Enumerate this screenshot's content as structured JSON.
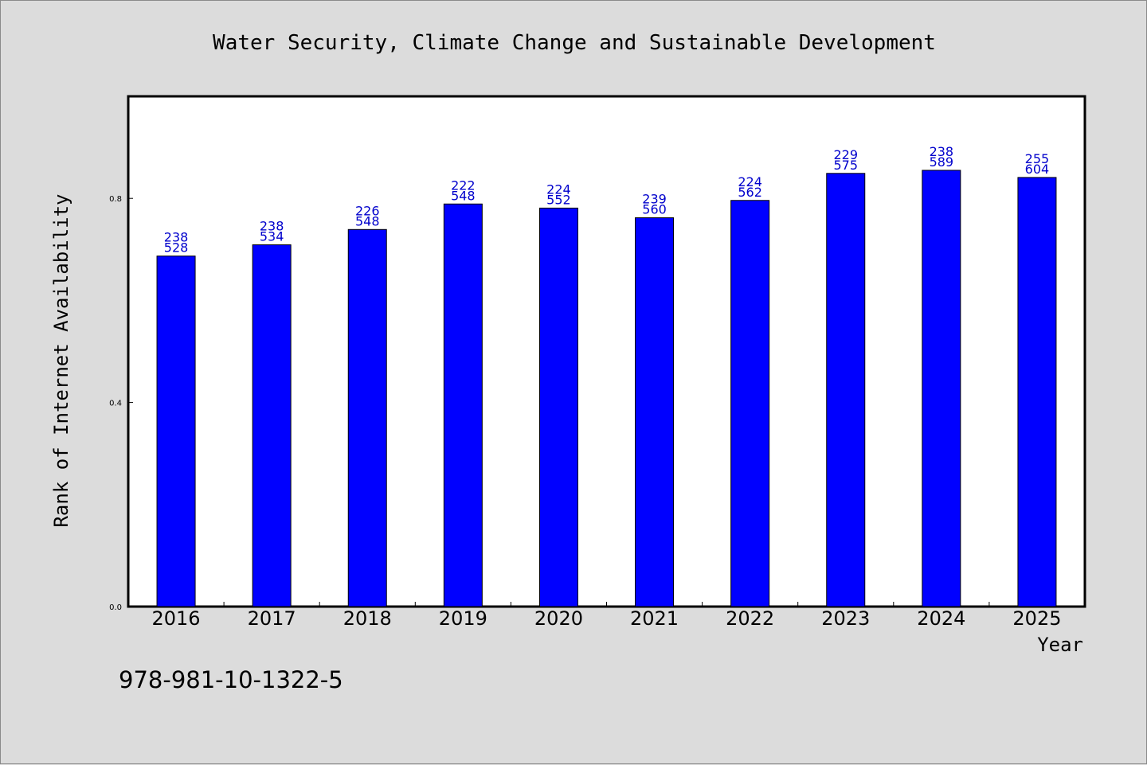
{
  "colors": {
    "bar": "#0000ff",
    "bar_stroke": "#000000",
    "label": "#0000cc",
    "plot_bg": "#ffffff",
    "page_bg": "#dcdcdc"
  },
  "footer": {
    "isbn": "978-981-10-1322-5"
  },
  "chart_data": {
    "type": "bar",
    "title": "Water Security, Climate Change and Sustainable Development",
    "xlabel": "Year",
    "ylabel": "Rank of Internet Availability",
    "categories": [
      "2016",
      "2017",
      "2018",
      "2019",
      "2020",
      "2021",
      "2022",
      "2023",
      "2024",
      "2025"
    ],
    "values": [
      0.687,
      0.709,
      0.739,
      0.789,
      0.781,
      0.762,
      0.796,
      0.849,
      0.855,
      0.841
    ],
    "data_labels_top": [
      "238",
      "238",
      "226",
      "222",
      "224",
      "239",
      "224",
      "229",
      "238",
      "255"
    ],
    "data_labels_bottom": [
      "528",
      "534",
      "548",
      "548",
      "552",
      "560",
      "562",
      "575",
      "589",
      "604"
    ],
    "ylim": [
      0,
      1.0
    ],
    "yticks": [
      0.0,
      0.4,
      0.8
    ],
    "ytick_labels": [
      "0.0",
      "0.4",
      "0.8"
    ],
    "grid": false,
    "legend": "none"
  }
}
